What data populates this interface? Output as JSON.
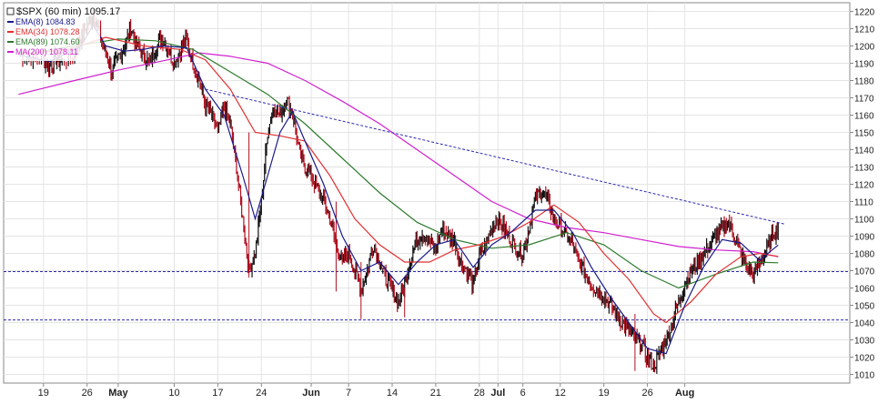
{
  "chart_data": {
    "type": "line",
    "symbol_title": "$SPX (60 min) 1095.17",
    "y_range": [
      1005,
      1225
    ],
    "y_ticks": [
      1010,
      1020,
      1030,
      1040,
      1050,
      1060,
      1070,
      1080,
      1090,
      1100,
      1110,
      1120,
      1130,
      1140,
      1150,
      1160,
      1170,
      1180,
      1190,
      1200,
      1210,
      1220
    ],
    "x_ticks": [
      {
        "label": "19",
        "day": 0,
        "bold": false
      },
      {
        "label": "26",
        "day": 7,
        "bold": false
      },
      {
        "label": "May",
        "day": 12,
        "bold": true
      },
      {
        "label": "10",
        "day": 21,
        "bold": false
      },
      {
        "label": "17",
        "day": 28,
        "bold": false
      },
      {
        "label": "24",
        "day": 35,
        "bold": false
      },
      {
        "label": "Jun",
        "day": 43,
        "bold": true
      },
      {
        "label": "7",
        "day": 49,
        "bold": false
      },
      {
        "label": "14",
        "day": 56,
        "bold": false
      },
      {
        "label": "21",
        "day": 63,
        "bold": false
      },
      {
        "label": "28",
        "day": 70,
        "bold": false
      },
      {
        "label": "Jul",
        "day": 73,
        "bold": true
      },
      {
        "label": "6",
        "day": 77,
        "bold": false
      },
      {
        "label": "12",
        "day": 83,
        "bold": false
      },
      {
        "label": "19",
        "day": 90,
        "bold": false
      },
      {
        "label": "26",
        "day": 97,
        "bold": false
      },
      {
        "label": "Aug",
        "day": 103,
        "bold": true
      }
    ],
    "legend": [
      {
        "name": "EMA(8)",
        "value": "1084.83",
        "color": "#1a1a8c"
      },
      {
        "name": "EMA(34)",
        "value": "1078.28",
        "color": "#e03030"
      },
      {
        "name": "EMA(89)",
        "value": "1074.60",
        "color": "#2d7a2d"
      },
      {
        "name": "MA(200)",
        "value": "1078.11",
        "color": "#d020d0"
      }
    ],
    "price": [
      [
        -4,
        1195
      ],
      [
        -2,
        1192
      ],
      [
        0,
        1192
      ],
      [
        1,
        1188
      ],
      [
        2,
        1193
      ],
      [
        3,
        1190
      ],
      [
        5,
        1195
      ],
      [
        6,
        1205
      ],
      [
        7,
        1212
      ],
      [
        8,
        1218
      ],
      [
        9,
        1208
      ],
      [
        10,
        1195
      ],
      [
        11,
        1185
      ],
      [
        12,
        1193
      ],
      [
        13,
        1200
      ],
      [
        14,
        1210
      ],
      [
        15,
        1200
      ],
      [
        16,
        1195
      ],
      [
        17,
        1190
      ],
      [
        18,
        1198
      ],
      [
        19,
        1205
      ],
      [
        20,
        1198
      ],
      [
        21,
        1190
      ],
      [
        22,
        1198
      ],
      [
        23,
        1203
      ],
      [
        24,
        1190
      ],
      [
        25,
        1180
      ],
      [
        26,
        1165
      ],
      [
        27,
        1160
      ],
      [
        28,
        1150
      ],
      [
        29,
        1165
      ],
      [
        30,
        1155
      ],
      [
        31,
        1130
      ],
      [
        32,
        1100
      ],
      [
        33,
        1070
      ],
      [
        34,
        1080
      ],
      [
        35,
        1110
      ],
      [
        36,
        1150
      ],
      [
        37,
        1165
      ],
      [
        38,
        1160
      ],
      [
        39,
        1170
      ],
      [
        40,
        1160
      ],
      [
        41,
        1140
      ],
      [
        42,
        1130
      ],
      [
        43,
        1125
      ],
      [
        44,
        1118
      ],
      [
        45,
        1110
      ],
      [
        46,
        1100
      ],
      [
        47,
        1085
      ],
      [
        48,
        1075
      ],
      [
        49,
        1080
      ],
      [
        50,
        1070
      ],
      [
        51,
        1060
      ],
      [
        52,
        1070
      ],
      [
        53,
        1085
      ],
      [
        54,
        1075
      ],
      [
        55,
        1065
      ],
      [
        56,
        1058
      ],
      [
        57,
        1052
      ],
      [
        58,
        1062
      ],
      [
        59,
        1078
      ],
      [
        60,
        1088
      ],
      [
        61,
        1092
      ],
      [
        62,
        1086
      ],
      [
        63,
        1082
      ],
      [
        64,
        1094
      ],
      [
        65,
        1090
      ],
      [
        66,
        1088
      ],
      [
        67,
        1075
      ],
      [
        68,
        1070
      ],
      [
        69,
        1062
      ],
      [
        70,
        1078
      ],
      [
        71,
        1085
      ],
      [
        72,
        1095
      ],
      [
        73,
        1100
      ],
      [
        74,
        1094
      ],
      [
        75,
        1088
      ],
      [
        76,
        1082
      ],
      [
        77,
        1080
      ],
      [
        78,
        1095
      ],
      [
        79,
        1112
      ],
      [
        80,
        1117
      ],
      [
        81,
        1110
      ],
      [
        82,
        1100
      ],
      [
        83,
        1096
      ],
      [
        84,
        1090
      ],
      [
        85,
        1085
      ],
      [
        86,
        1075
      ],
      [
        87,
        1068
      ],
      [
        88,
        1062
      ],
      [
        89,
        1058
      ],
      [
        90,
        1055
      ],
      [
        91,
        1050
      ],
      [
        92,
        1045
      ],
      [
        93,
        1040
      ],
      [
        94,
        1035
      ],
      [
        95,
        1030
      ],
      [
        96,
        1028
      ],
      [
        97,
        1020
      ],
      [
        98,
        1015
      ],
      [
        99,
        1022
      ],
      [
        100,
        1030
      ],
      [
        101,
        1040
      ],
      [
        102,
        1052
      ],
      [
        103,
        1062
      ],
      [
        104,
        1070
      ],
      [
        105,
        1075
      ],
      [
        106,
        1080
      ],
      [
        107,
        1085
      ],
      [
        108,
        1090
      ],
      [
        109,
        1095
      ],
      [
        110,
        1098
      ],
      [
        111,
        1090
      ],
      [
        112,
        1080
      ],
      [
        113,
        1072
      ],
      [
        114,
        1068
      ],
      [
        115,
        1075
      ],
      [
        116,
        1080
      ],
      [
        117,
        1090
      ],
      [
        118,
        1095.17
      ]
    ],
    "ema8": [
      [
        -4,
        1195
      ],
      [
        1,
        1191
      ],
      [
        6,
        1200
      ],
      [
        8,
        1212
      ],
      [
        10,
        1200
      ],
      [
        13,
        1197
      ],
      [
        16,
        1198
      ],
      [
        19,
        1200
      ],
      [
        23,
        1199
      ],
      [
        26,
        1175
      ],
      [
        29,
        1160
      ],
      [
        32,
        1125
      ],
      [
        34,
        1100
      ],
      [
        36,
        1125
      ],
      [
        38,
        1150
      ],
      [
        40,
        1162
      ],
      [
        42,
        1145
      ],
      [
        45,
        1120
      ],
      [
        48,
        1090
      ],
      [
        51,
        1070
      ],
      [
        54,
        1075
      ],
      [
        57,
        1062
      ],
      [
        60,
        1075
      ],
      [
        63,
        1085
      ],
      [
        66,
        1088
      ],
      [
        69,
        1072
      ],
      [
        72,
        1085
      ],
      [
        75,
        1092
      ],
      [
        79,
        1105
      ],
      [
        82,
        1105
      ],
      [
        85,
        1092
      ],
      [
        88,
        1072
      ],
      [
        91,
        1055
      ],
      [
        94,
        1040
      ],
      [
        97,
        1025
      ],
      [
        100,
        1022
      ],
      [
        103,
        1050
      ],
      [
        106,
        1072
      ],
      [
        109,
        1088
      ],
      [
        112,
        1086
      ],
      [
        115,
        1076
      ],
      [
        118,
        1084.83
      ]
    ],
    "ema34": [
      [
        -4,
        1195
      ],
      [
        4,
        1198
      ],
      [
        10,
        1205
      ],
      [
        16,
        1200
      ],
      [
        22,
        1198
      ],
      [
        26,
        1192
      ],
      [
        30,
        1175
      ],
      [
        34,
        1150
      ],
      [
        38,
        1148
      ],
      [
        42,
        1145
      ],
      [
        46,
        1125
      ],
      [
        50,
        1100
      ],
      [
        54,
        1085
      ],
      [
        58,
        1075
      ],
      [
        62,
        1075
      ],
      [
        66,
        1082
      ],
      [
        70,
        1085
      ],
      [
        74,
        1090
      ],
      [
        78,
        1098
      ],
      [
        82,
        1108
      ],
      [
        86,
        1098
      ],
      [
        90,
        1080
      ],
      [
        94,
        1065
      ],
      [
        98,
        1045
      ],
      [
        100,
        1040
      ],
      [
        104,
        1052
      ],
      [
        108,
        1068
      ],
      [
        112,
        1078
      ],
      [
        115,
        1080
      ],
      [
        118,
        1078.28
      ]
    ],
    "ema89": [
      [
        -4,
        1195
      ],
      [
        5,
        1200
      ],
      [
        12,
        1204
      ],
      [
        18,
        1203
      ],
      [
        24,
        1198
      ],
      [
        30,
        1185
      ],
      [
        36,
        1172
      ],
      [
        42,
        1155
      ],
      [
        48,
        1135
      ],
      [
        54,
        1115
      ],
      [
        60,
        1098
      ],
      [
        66,
        1088
      ],
      [
        72,
        1083
      ],
      [
        78,
        1085
      ],
      [
        84,
        1092
      ],
      [
        90,
        1085
      ],
      [
        96,
        1070
      ],
      [
        102,
        1060
      ],
      [
        108,
        1068
      ],
      [
        114,
        1075
      ],
      [
        118,
        1074.6
      ]
    ],
    "ma200": [
      [
        -4,
        1172
      ],
      [
        5,
        1180
      ],
      [
        12,
        1186
      ],
      [
        20,
        1192
      ],
      [
        25,
        1196
      ],
      [
        30,
        1194
      ],
      [
        36,
        1190
      ],
      [
        42,
        1180
      ],
      [
        48,
        1168
      ],
      [
        54,
        1155
      ],
      [
        60,
        1140
      ],
      [
        66,
        1125
      ],
      [
        72,
        1110
      ],
      [
        78,
        1100
      ],
      [
        84,
        1095
      ],
      [
        90,
        1092
      ],
      [
        96,
        1088
      ],
      [
        102,
        1084
      ],
      [
        108,
        1082
      ],
      [
        114,
        1081
      ],
      [
        118,
        1078.11
      ]
    ],
    "trendline": [
      [
        26,
        1175
      ],
      [
        119,
        1097
      ]
    ],
    "hlines": [
      1041.5,
      1069.5
    ],
    "ohlc_note": "60-minute OHLC bars"
  }
}
